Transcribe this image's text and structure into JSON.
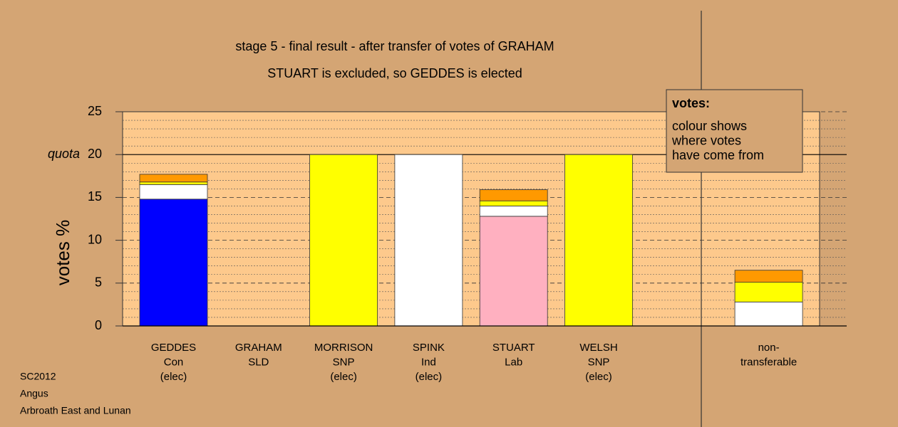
{
  "chart_data": {
    "type": "bar",
    "title": "stage 5 - final result - after transfer of votes of GRAHAM",
    "subtitle": "STUART is excluded, so GEDDES is elected",
    "y_label": "votes %",
    "categories": [
      [
        "GEDDES",
        "Con",
        "(elec)"
      ],
      [
        "GRAHAM",
        "SLD"
      ],
      [
        "MORRISON",
        "SNP",
        "(elec)"
      ],
      [
        "SPINK",
        "Ind",
        "(elec)"
      ],
      [
        "STUART",
        "Lab"
      ],
      [
        "WELSH",
        "SNP",
        "(elec)"
      ],
      null,
      [
        "non-",
        "transferable"
      ]
    ],
    "series": [
      {
        "color": "#0000ff",
        "values": [
          14.8,
          0,
          0,
          0,
          0,
          0,
          null,
          0
        ]
      },
      {
        "color": "#ffb0c0",
        "values": [
          0,
          0,
          0,
          0,
          12.8,
          0,
          null,
          0
        ]
      },
      {
        "color": "#ffffff",
        "values": [
          1.7,
          0,
          0,
          20,
          1.2,
          0,
          null,
          2.8
        ]
      },
      {
        "color": "#ffff00",
        "values": [
          0.3,
          0,
          20,
          0,
          0.6,
          20,
          null,
          2.3
        ]
      },
      {
        "color": "#ff9900",
        "values": [
          0.9,
          0,
          0,
          0,
          1.3,
          0,
          null,
          1.4
        ]
      }
    ],
    "ylim": [
      0,
      25
    ],
    "yticks": [
      0,
      5,
      10,
      15,
      20,
      25
    ],
    "minor_yticks": [
      1,
      2,
      3,
      4,
      6,
      7,
      8,
      9,
      11,
      12,
      13,
      14,
      16,
      17,
      18,
      19,
      21,
      22,
      23,
      24
    ],
    "quota_label": "quota",
    "quota": 20,
    "stacked": true,
    "grid": true,
    "legend_box": {
      "heading": "votes:",
      "lines": [
        "colour shows",
        "where votes",
        "have come from"
      ]
    },
    "notes": [
      "SC2012",
      "Angus",
      "Arbroath East and Lunan"
    ]
  }
}
